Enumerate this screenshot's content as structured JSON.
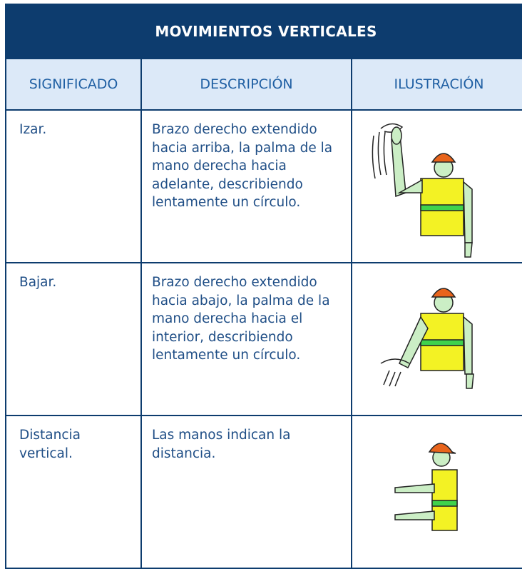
{
  "header": {
    "title": "MOVIMIENTOS VERTICALES"
  },
  "table": {
    "columns": [
      "SIGNIFICADO",
      "DESCRIPCIÓN",
      "ILUSTRACIÓN"
    ],
    "rows": [
      [
        "Izar.",
        "Brazo derecho extendido hacia arriba, la palma de la mano derecha hacia adelante, describiendo lentamente un círculo."
      ],
      [
        "Bajar.",
        "Brazo derecho extendido hacia abajo, la palma de la mano derecha hacia el interior, describiendo lentamente un círculo."
      ],
      [
        "Distancia vertical.",
        "Las manos indican la distancia."
      ]
    ]
  }
}
